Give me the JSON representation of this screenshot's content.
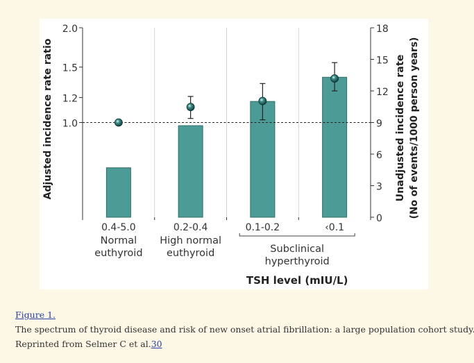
{
  "chart_data": {
    "type": "bar",
    "categories": [
      {
        "tick": "0.4-5.0",
        "lines": [
          "Normal",
          "euthyroid"
        ]
      },
      {
        "tick": "0.2-0.4",
        "lines": [
          "High normal",
          "euthyroid"
        ]
      },
      {
        "tick": "0.1-0.2",
        "lines": []
      },
      {
        "tick": "‹0.1",
        "lines": []
      }
    ],
    "group_label": [
      "Subclinical",
      "hyperthyroid"
    ],
    "xlabel": "TSH level (mIU/L)",
    "bars": {
      "name": "Unadjusted incidence rate",
      "axis": "right",
      "values": [
        4.7,
        8.7,
        11.0,
        13.3
      ]
    },
    "points": {
      "name": "Adjusted incidence rate ratio",
      "axis": "left",
      "values": [
        1.0,
        1.12,
        1.17,
        1.38
      ],
      "ci_low": [
        null,
        1.03,
        1.02,
        1.26
      ],
      "ci_high": [
        null,
        1.21,
        1.33,
        1.55
      ]
    },
    "left_axis": {
      "label": "Adjusted incidence rate ratio",
      "ticks": [
        1.0,
        1.2,
        1.5,
        2.0
      ],
      "tick_labels": [
        "1.0",
        "1.2",
        "1.5",
        "2.0"
      ],
      "scale": "log",
      "ylim": [
        0.5,
        2.0
      ]
    },
    "right_axis": {
      "label": [
        "Unadjusted incidence rate",
        "(No of events/1000 person years)"
      ],
      "ticks": [
        0,
        3,
        6,
        9,
        12,
        15,
        18
      ],
      "ylim": [
        0,
        18
      ]
    },
    "reference_line": {
      "value": 1.0,
      "style": "dashed"
    },
    "colors": {
      "bar": "#4d9b96",
      "bar_edge": "#2f6e6a",
      "point": "#1f5c5a",
      "point_highlight": "#ffffff",
      "axis": "#333333",
      "grid": "#cccccc"
    }
  },
  "caption": {
    "figure_link": "Figure 1.",
    "title": "The spectrum of thyroid disease and risk of new onset atrial fibrillation: a large population cohort study.",
    "credit_text": "Reprinted from Selmer C et al.",
    "ref_link": "30"
  }
}
